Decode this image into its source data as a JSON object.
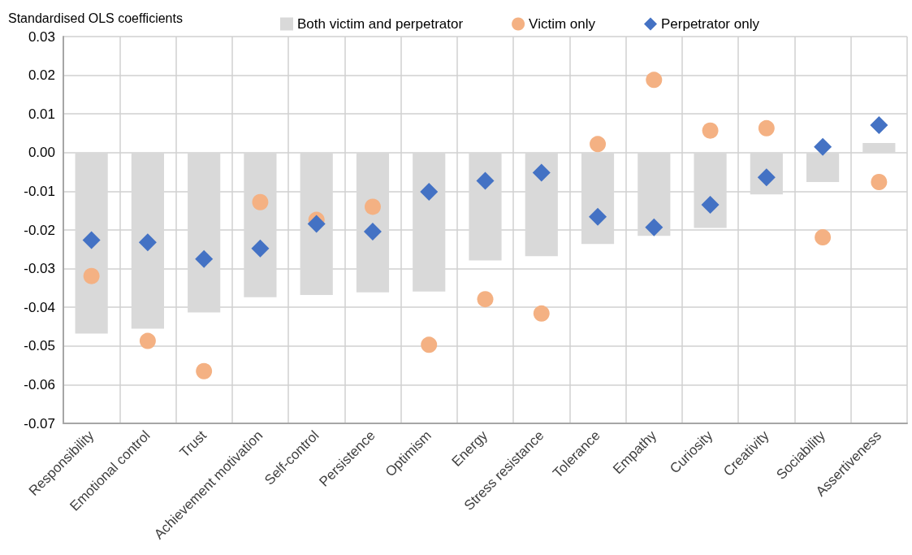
{
  "chart_data": {
    "type": "bar",
    "ylabel": "Standardised OLS coefficients",
    "categories": [
      "Responsibility",
      "Emotional control",
      "Trust",
      "Achievement motivation",
      "Self-control",
      "Persistence",
      "Optimism",
      "Energy",
      "Stress resistance",
      "Tolerance",
      "Empathy",
      "Curiosity",
      "Creativity",
      "Sociability",
      "Assertiveness"
    ],
    "series": [
      {
        "name": "Both victim and perpetrator",
        "color": "#d9d9d9",
        "values": [
          -0.0468,
          -0.0455,
          -0.0413,
          -0.0374,
          -0.0368,
          -0.0361,
          -0.0359,
          -0.0279,
          -0.0268,
          -0.0236,
          -0.0215,
          -0.0195,
          -0.0108,
          -0.0076,
          0.0025
        ]
      },
      {
        "name": "Victim only",
        "type": "scatter",
        "marker": "circle",
        "color": "#f4b183",
        "values": [
          -0.0319,
          -0.0487,
          -0.0565,
          -0.0128,
          -0.0174,
          -0.014,
          -0.0497,
          -0.0379,
          -0.0416,
          0.0022,
          0.0188,
          0.0057,
          0.0063,
          -0.0219,
          -0.0076
        ]
      },
      {
        "name": "Perpetrator only",
        "type": "scatter",
        "marker": "diamond",
        "color": "#4472c4",
        "values": [
          -0.0226,
          -0.0232,
          -0.0275,
          -0.0248,
          -0.0184,
          -0.0204,
          -0.0101,
          -0.0073,
          -0.0052,
          -0.0166,
          -0.0193,
          -0.0135,
          -0.0064,
          0.0015,
          0.0071
        ]
      }
    ],
    "ylim": [
      -0.07,
      0.03
    ],
    "yticks": [
      {
        "value": -0.07,
        "label": "-0.07"
      },
      {
        "value": -0.06,
        "label": "-0.06"
      },
      {
        "value": -0.05,
        "label": "-0.05"
      },
      {
        "value": -0.04,
        "label": "-0.04"
      },
      {
        "value": -0.03,
        "label": "-0.03"
      },
      {
        "value": -0.02,
        "label": "-0.02"
      },
      {
        "value": -0.01,
        "label": "-0.01"
      },
      {
        "value": 0,
        "label": "0.00"
      },
      {
        "value": 0.01,
        "label": "0.01"
      },
      {
        "value": 0.02,
        "label": "0.02"
      },
      {
        "value": 0.03,
        "label": "0.03"
      }
    ],
    "grid": true,
    "legend": "top"
  }
}
